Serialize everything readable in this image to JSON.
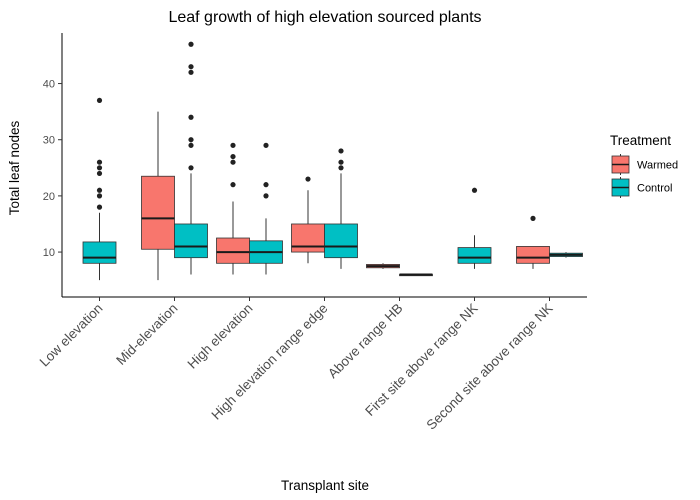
{
  "chart_data": {
    "type": "box",
    "title": "Leaf growth of high elevation sourced plants",
    "xlabel": "Transplant site",
    "ylabel": "Total leaf nodes",
    "ylim": [
      2,
      49
    ],
    "yticks": [
      10,
      20,
      30,
      40
    ],
    "grid": false,
    "legend": {
      "title": "Treatment",
      "position": "right",
      "entries": [
        "Warmed",
        "Control"
      ]
    },
    "colors": {
      "Warmed": "#F8766D",
      "Control": "#00BFC4"
    },
    "categories": [
      "Low elevation",
      "Mid-elevation",
      "High elevation",
      "High elevation range edge",
      "Above range HB",
      "First site above range NK",
      "Second site above range NK"
    ],
    "series": [
      {
        "name": "Warmed",
        "boxes": [
          null,
          {
            "min": 5,
            "q1": 10.5,
            "median": 16,
            "q3": 23.5,
            "max": 35,
            "outliers": []
          },
          {
            "min": 6,
            "q1": 8,
            "median": 10,
            "q3": 12.5,
            "max": 19,
            "outliers": [
              22,
              26,
              27,
              29
            ]
          },
          {
            "min": 8,
            "q1": 10,
            "median": 11,
            "q3": 15,
            "max": 21,
            "outliers": [
              23
            ]
          },
          {
            "min": 7,
            "q1": 7.2,
            "median": 7.5,
            "q3": 7.8,
            "max": 8,
            "outliers": []
          },
          null,
          {
            "min": 7,
            "q1": 8,
            "median": 9,
            "q3": 11,
            "max": 11,
            "outliers": [
              16
            ]
          }
        ]
      },
      {
        "name": "Control",
        "boxes": [
          {
            "min": 5,
            "q1": 8,
            "median": 9,
            "q3": 11.8,
            "max": 17,
            "outliers": [
              18,
              20,
              21,
              24,
              25,
              26,
              37
            ]
          },
          {
            "min": 6,
            "q1": 9,
            "median": 11,
            "q3": 15,
            "max": 24,
            "outliers": [
              25,
              29,
              30,
              34,
              42,
              43,
              47
            ]
          },
          {
            "min": 6,
            "q1": 8,
            "median": 10,
            "q3": 12,
            "max": 16,
            "outliers": [
              20,
              22,
              29
            ]
          },
          {
            "min": 7,
            "q1": 9,
            "median": 11,
            "q3": 15,
            "max": 24,
            "outliers": [
              25,
              26,
              28
            ]
          },
          {
            "min": 6,
            "q1": 6,
            "median": 6,
            "q3": 6,
            "max": 6,
            "outliers": []
          },
          {
            "min": 7,
            "q1": 8,
            "median": 9,
            "q3": 10.8,
            "max": 13,
            "outliers": [
              21
            ]
          },
          {
            "min": 9,
            "q1": 9.2,
            "median": 9.5,
            "q3": 9.8,
            "max": 10,
            "outliers": []
          }
        ]
      }
    ]
  }
}
